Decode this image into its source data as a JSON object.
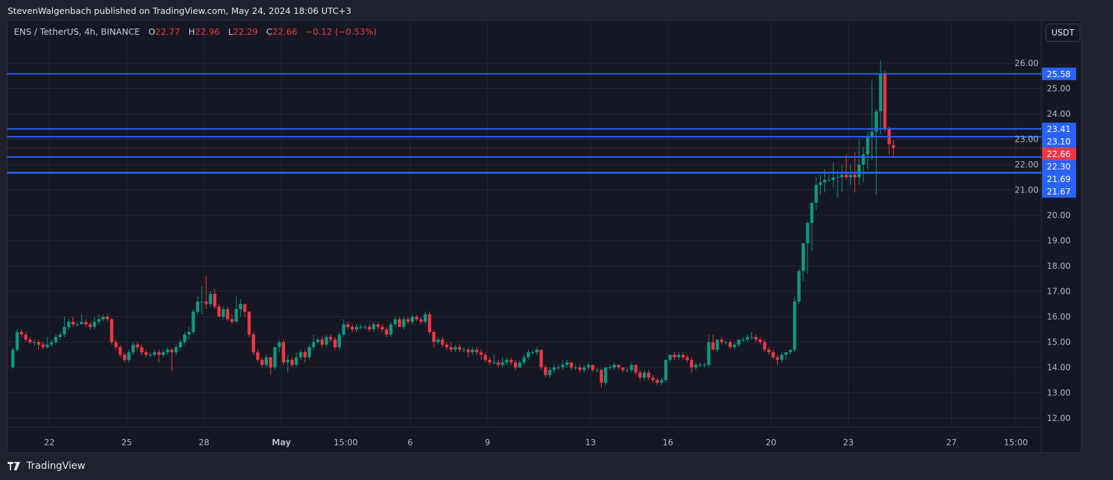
{
  "header": {
    "published": "StevenWalgenbach published on TradingView.com, May 24, 2024 18:06 UTC+3"
  },
  "legend": {
    "symbol": "ENS / TetherUS, 4h, BINANCE",
    "open_label": "O",
    "open": "22.77",
    "high_label": "H",
    "high": "22.96",
    "low_label": "L",
    "low": "22.29",
    "close_label": "C",
    "close": "22.66",
    "change": "−0.12 (−0.53%)"
  },
  "currency_button": "USDT",
  "branding": {
    "logo_text": "TradingView"
  },
  "colors": {
    "up": "#089981",
    "down": "#f23645",
    "level_line": "#2962ff",
    "last_price": "#f23645",
    "background": "#151823",
    "grid": "#232734"
  },
  "chart_data": {
    "type": "candlestick",
    "title": "ENS / TetherUS, 4h, BINANCE",
    "interval": "4h",
    "grid": true,
    "ylim": [
      12,
      26
    ],
    "y_ticks": [
      "12.00",
      "13.00",
      "14.00",
      "15.00",
      "16.00",
      "17.00",
      "18.00",
      "19.00",
      "20.00",
      "21.00",
      "22.00",
      "23.00",
      "24.00",
      "25.00",
      "26.00"
    ],
    "x_ticks": [
      {
        "label": "22",
        "day": 2
      },
      {
        "label": "25",
        "day": 5
      },
      {
        "label": "28",
        "day": 8
      },
      {
        "label": "May",
        "day": 11
      },
      {
        "label": "15:00",
        "day": 13.5
      },
      {
        "label": "6",
        "day": 16
      },
      {
        "label": "9",
        "day": 19
      },
      {
        "label": "13",
        "day": 23
      },
      {
        "label": "16",
        "day": 26
      },
      {
        "label": "20",
        "day": 30
      },
      {
        "label": "23",
        "day": 33
      },
      {
        "label": "27",
        "day": 37
      },
      {
        "label": "15:00",
        "day": 39.5
      }
    ],
    "first_candle_day": 0.5,
    "candles_per_day": 6,
    "price_levels": [
      {
        "value": 25.58,
        "label": "25.58"
      },
      {
        "value": 23.41,
        "label": "23.41"
      },
      {
        "value": 23.1,
        "label": "23.10"
      },
      {
        "value": 22.3,
        "label": "22.30"
      },
      {
        "value": 21.69,
        "label": "21.69"
      },
      {
        "value": 21.67,
        "label": "21.67"
      }
    ],
    "last_price": {
      "value": 22.66,
      "label": "22.66"
    },
    "ohlc": [
      [
        14.0,
        14.8,
        13.95,
        14.7
      ],
      [
        14.7,
        15.5,
        14.6,
        15.4
      ],
      [
        15.4,
        15.5,
        15.2,
        15.3
      ],
      [
        15.3,
        15.4,
        15.0,
        15.1
      ],
      [
        15.1,
        15.2,
        14.9,
        15.0
      ],
      [
        15.0,
        15.1,
        14.85,
        15.0
      ],
      [
        15.0,
        15.1,
        14.7,
        14.9
      ],
      [
        14.9,
        15.0,
        14.7,
        14.8
      ],
      [
        14.8,
        15.2,
        14.75,
        14.9
      ],
      [
        14.9,
        15.1,
        14.8,
        15.0
      ],
      [
        15.0,
        15.3,
        14.9,
        15.2
      ],
      [
        15.2,
        15.4,
        15.1,
        15.3
      ],
      [
        15.3,
        16.0,
        15.2,
        15.6
      ],
      [
        15.6,
        15.9,
        15.5,
        15.8
      ],
      [
        15.8,
        16.0,
        15.6,
        15.7
      ],
      [
        15.7,
        15.8,
        15.6,
        15.7
      ],
      [
        15.7,
        16.1,
        15.7,
        15.8
      ],
      [
        15.8,
        15.9,
        15.6,
        15.7
      ],
      [
        15.7,
        15.8,
        15.5,
        15.6
      ],
      [
        15.6,
        16.0,
        15.5,
        15.8
      ],
      [
        15.8,
        16.1,
        15.7,
        15.9
      ],
      [
        15.9,
        16.1,
        15.8,
        16.0
      ],
      [
        16.0,
        16.1,
        15.8,
        15.9
      ],
      [
        15.9,
        15.95,
        14.9,
        15.0
      ],
      [
        15.0,
        15.1,
        14.7,
        14.8
      ],
      [
        14.8,
        14.9,
        14.4,
        14.5
      ],
      [
        14.5,
        14.6,
        14.2,
        14.3
      ],
      [
        14.3,
        14.7,
        14.2,
        14.6
      ],
      [
        14.6,
        15.0,
        14.5,
        14.9
      ],
      [
        14.9,
        15.0,
        14.7,
        14.8
      ],
      [
        14.8,
        14.9,
        14.5,
        14.6
      ],
      [
        14.6,
        14.7,
        14.4,
        14.5
      ],
      [
        14.5,
        14.6,
        14.4,
        14.5
      ],
      [
        14.5,
        14.7,
        14.4,
        14.6
      ],
      [
        14.6,
        14.7,
        14.2,
        14.5
      ],
      [
        14.5,
        14.7,
        14.4,
        14.6
      ],
      [
        14.6,
        14.8,
        14.5,
        14.7
      ],
      [
        14.7,
        14.75,
        13.85,
        14.6
      ],
      [
        14.6,
        14.9,
        14.5,
        14.8
      ],
      [
        14.8,
        15.1,
        14.7,
        15.0
      ],
      [
        15.0,
        15.4,
        14.9,
        15.3
      ],
      [
        15.3,
        15.6,
        15.1,
        15.4
      ],
      [
        15.4,
        16.3,
        15.3,
        16.2
      ],
      [
        16.2,
        16.8,
        16.1,
        16.6
      ],
      [
        16.6,
        17.2,
        16.1,
        16.6
      ],
      [
        16.6,
        17.6,
        16.3,
        16.5
      ],
      [
        16.5,
        17.0,
        16.4,
        16.9
      ],
      [
        16.9,
        17.1,
        16.3,
        16.4
      ],
      [
        16.4,
        16.5,
        16.0,
        16.0
      ],
      [
        16.0,
        16.4,
        15.9,
        16.3
      ],
      [
        16.3,
        16.4,
        15.8,
        15.9
      ],
      [
        15.9,
        16.1,
        15.7,
        15.8
      ],
      [
        15.8,
        16.8,
        15.8,
        16.3
      ],
      [
        16.3,
        16.7,
        16.0,
        16.5
      ],
      [
        16.5,
        16.5,
        16.0,
        16.2
      ],
      [
        16.2,
        16.2,
        15.2,
        15.3
      ],
      [
        15.3,
        15.4,
        14.5,
        14.6
      ],
      [
        14.6,
        14.7,
        14.2,
        14.3
      ],
      [
        14.3,
        14.4,
        14.0,
        14.1
      ],
      [
        14.1,
        14.5,
        14.0,
        14.4
      ],
      [
        14.4,
        14.4,
        13.7,
        14.0
      ],
      [
        14.0,
        14.8,
        13.9,
        14.8
      ],
      [
        14.8,
        15.1,
        14.6,
        15.0
      ],
      [
        15.0,
        15.1,
        14.1,
        14.2
      ],
      [
        14.2,
        14.5,
        13.8,
        14.3
      ],
      [
        14.3,
        14.4,
        14.0,
        14.1
      ],
      [
        14.1,
        14.6,
        14.0,
        14.4
      ],
      [
        14.4,
        14.7,
        14.3,
        14.6
      ],
      [
        14.6,
        14.7,
        14.2,
        14.4
      ],
      [
        14.4,
        14.9,
        14.3,
        14.8
      ],
      [
        14.8,
        15.3,
        14.7,
        15.0
      ],
      [
        15.0,
        15.2,
        14.9,
        15.1
      ],
      [
        15.1,
        15.2,
        14.8,
        14.9
      ],
      [
        14.9,
        15.3,
        14.8,
        15.2
      ],
      [
        15.2,
        15.3,
        15.0,
        15.1
      ],
      [
        15.1,
        15.2,
        14.7,
        14.8
      ],
      [
        14.8,
        15.4,
        14.7,
        15.3
      ],
      [
        15.3,
        15.9,
        15.2,
        15.7
      ],
      [
        15.7,
        15.8,
        15.5,
        15.6
      ],
      [
        15.6,
        15.7,
        15.4,
        15.5
      ],
      [
        15.5,
        15.7,
        15.4,
        15.6
      ],
      [
        15.6,
        15.7,
        15.5,
        15.6
      ],
      [
        15.6,
        15.7,
        15.5,
        15.6
      ],
      [
        15.6,
        15.7,
        15.4,
        15.5
      ],
      [
        15.5,
        15.8,
        15.4,
        15.7
      ],
      [
        15.7,
        15.8,
        15.5,
        15.6
      ],
      [
        15.6,
        15.7,
        15.4,
        15.5
      ],
      [
        15.5,
        15.6,
        15.2,
        15.3
      ],
      [
        15.3,
        15.8,
        15.2,
        15.7
      ],
      [
        15.7,
        16.0,
        15.6,
        15.9
      ],
      [
        15.9,
        16.0,
        15.6,
        15.6
      ],
      [
        15.6,
        16.0,
        15.5,
        15.9
      ],
      [
        15.9,
        16.0,
        15.7,
        15.8
      ],
      [
        15.8,
        16.1,
        15.7,
        16.0
      ],
      [
        16.0,
        16.1,
        15.8,
        15.9
      ],
      [
        15.9,
        16.0,
        15.7,
        15.8
      ],
      [
        15.8,
        16.2,
        15.7,
        16.1
      ],
      [
        16.1,
        16.2,
        15.3,
        15.4
      ],
      [
        15.4,
        15.5,
        14.8,
        15.0
      ],
      [
        15.0,
        15.2,
        14.9,
        15.1
      ],
      [
        15.1,
        15.2,
        14.8,
        14.9
      ],
      [
        14.9,
        15.0,
        14.7,
        14.8
      ],
      [
        14.8,
        15.0,
        14.6,
        14.7
      ],
      [
        14.7,
        14.9,
        14.6,
        14.8
      ],
      [
        14.8,
        14.9,
        14.6,
        14.7
      ],
      [
        14.7,
        14.8,
        14.6,
        14.7
      ],
      [
        14.7,
        14.8,
        14.4,
        14.6
      ],
      [
        14.6,
        14.8,
        14.5,
        14.7
      ],
      [
        14.7,
        14.8,
        14.5,
        14.6
      ],
      [
        14.6,
        14.7,
        14.3,
        14.5
      ],
      [
        14.5,
        14.6,
        14.2,
        14.3
      ],
      [
        14.3,
        14.4,
        14.1,
        14.2
      ],
      [
        14.2,
        14.5,
        14.1,
        14.2
      ],
      [
        14.2,
        14.3,
        14.0,
        14.1
      ],
      [
        14.1,
        14.4,
        14.0,
        14.2
      ],
      [
        14.2,
        14.4,
        14.1,
        14.3
      ],
      [
        14.3,
        14.4,
        14.1,
        14.2
      ],
      [
        14.2,
        14.3,
        13.9,
        14.0
      ],
      [
        14.0,
        14.3,
        14.0,
        14.2
      ],
      [
        14.2,
        14.5,
        14.1,
        14.4
      ],
      [
        14.4,
        14.7,
        14.3,
        14.6
      ],
      [
        14.6,
        14.7,
        14.5,
        14.6
      ],
      [
        14.6,
        14.8,
        14.5,
        14.7
      ],
      [
        14.7,
        14.7,
        13.9,
        14.0
      ],
      [
        14.0,
        14.1,
        13.6,
        13.7
      ],
      [
        13.7,
        14.0,
        13.6,
        13.9
      ],
      [
        13.9,
        14.1,
        13.8,
        14.0
      ],
      [
        14.0,
        14.1,
        13.9,
        14.0
      ],
      [
        14.0,
        14.3,
        13.9,
        14.1
      ],
      [
        14.1,
        14.3,
        14.0,
        14.2
      ],
      [
        14.2,
        14.2,
        13.9,
        14.0
      ],
      [
        14.0,
        14.1,
        13.9,
        14.0
      ],
      [
        14.0,
        14.1,
        13.8,
        13.9
      ],
      [
        13.9,
        14.1,
        13.8,
        14.0
      ],
      [
        14.0,
        14.2,
        13.9,
        14.1
      ],
      [
        14.1,
        14.1,
        13.8,
        13.9
      ],
      [
        13.9,
        14.0,
        13.8,
        13.9
      ],
      [
        13.9,
        13.95,
        13.2,
        13.4
      ],
      [
        13.4,
        14.0,
        13.3,
        14.0
      ],
      [
        14.0,
        14.1,
        13.9,
        14.0
      ],
      [
        14.0,
        14.2,
        13.9,
        14.1
      ],
      [
        14.1,
        14.1,
        13.9,
        14.0
      ],
      [
        14.0,
        14.0,
        13.8,
        13.9
      ],
      [
        13.9,
        14.0,
        13.8,
        13.9
      ],
      [
        13.9,
        14.2,
        13.8,
        14.1
      ],
      [
        14.1,
        14.1,
        13.7,
        13.8
      ],
      [
        13.8,
        13.9,
        13.5,
        13.6
      ],
      [
        13.6,
        13.9,
        13.5,
        13.8
      ],
      [
        13.8,
        13.9,
        13.5,
        13.6
      ],
      [
        13.6,
        13.7,
        13.4,
        13.5
      ],
      [
        13.5,
        13.6,
        13.3,
        13.4
      ],
      [
        13.4,
        13.6,
        13.3,
        13.5
      ],
      [
        13.5,
        14.3,
        13.4,
        14.3
      ],
      [
        14.3,
        14.5,
        14.2,
        14.5
      ],
      [
        14.5,
        14.6,
        14.3,
        14.4
      ],
      [
        14.4,
        14.6,
        14.3,
        14.5
      ],
      [
        14.5,
        14.6,
        14.3,
        14.4
      ],
      [
        14.4,
        14.5,
        14.2,
        14.3
      ],
      [
        14.3,
        14.4,
        13.8,
        14.0
      ],
      [
        14.0,
        14.2,
        13.9,
        14.1
      ],
      [
        14.1,
        14.2,
        14.0,
        14.1
      ],
      [
        14.1,
        14.2,
        14.0,
        14.1
      ],
      [
        14.1,
        15.3,
        14.0,
        15.0
      ],
      [
        15.0,
        15.3,
        14.7,
        14.7
      ],
      [
        14.7,
        15.1,
        14.6,
        15.1
      ],
      [
        15.1,
        15.2,
        14.9,
        15.0
      ],
      [
        15.0,
        15.1,
        14.9,
        15.0
      ],
      [
        15.0,
        15.1,
        14.7,
        14.8
      ],
      [
        14.8,
        15.0,
        14.7,
        14.9
      ],
      [
        14.9,
        15.1,
        14.8,
        15.1
      ],
      [
        15.1,
        15.2,
        15.0,
        15.1
      ],
      [
        15.1,
        15.3,
        15.0,
        15.2
      ],
      [
        15.2,
        15.4,
        15.1,
        15.2
      ],
      [
        15.2,
        15.3,
        15.0,
        15.1
      ],
      [
        15.1,
        15.2,
        14.9,
        15.0
      ],
      [
        15.0,
        15.1,
        14.6,
        14.7
      ],
      [
        14.7,
        14.8,
        14.5,
        14.6
      ],
      [
        14.6,
        14.7,
        14.3,
        14.4
      ],
      [
        14.4,
        14.5,
        14.1,
        14.3
      ],
      [
        14.3,
        14.6,
        14.2,
        14.5
      ],
      [
        14.5,
        14.6,
        14.3,
        14.6
      ],
      [
        14.6,
        14.7,
        14.5,
        14.7
      ],
      [
        14.7,
        16.8,
        14.6,
        16.6
      ],
      [
        16.6,
        17.9,
        16.5,
        17.8
      ],
      [
        17.8,
        18.9,
        17.4,
        18.9
      ],
      [
        18.9,
        19.8,
        17.7,
        19.7
      ],
      [
        19.7,
        20.5,
        18.6,
        20.5
      ],
      [
        20.5,
        21.5,
        20.2,
        21.2
      ],
      [
        21.2,
        21.6,
        20.8,
        21.3
      ],
      [
        21.3,
        21.8,
        20.9,
        21.4
      ],
      [
        21.4,
        21.6,
        21.3,
        21.4
      ],
      [
        21.4,
        22.1,
        21.1,
        21.5
      ],
      [
        21.5,
        21.8,
        20.7,
        21.5
      ],
      [
        21.5,
        22.0,
        20.9,
        21.6
      ],
      [
        21.6,
        22.4,
        21.4,
        21.5
      ],
      [
        21.5,
        22.0,
        21.2,
        21.6
      ],
      [
        21.6,
        22.5,
        20.9,
        21.5
      ],
      [
        21.5,
        23.0,
        21.2,
        22.0
      ],
      [
        22.0,
        22.7,
        21.3,
        22.4
      ],
      [
        22.4,
        23.3,
        21.8,
        23.1
      ],
      [
        23.1,
        25.3,
        22.2,
        23.3
      ],
      [
        23.3,
        24.2,
        20.8,
        24.1
      ],
      [
        24.1,
        26.1,
        23.2,
        25.6
      ],
      [
        25.6,
        25.7,
        23.3,
        23.4
      ],
      [
        23.4,
        23.5,
        22.4,
        22.8
      ],
      [
        22.77,
        22.96,
        22.29,
        22.66
      ]
    ]
  }
}
